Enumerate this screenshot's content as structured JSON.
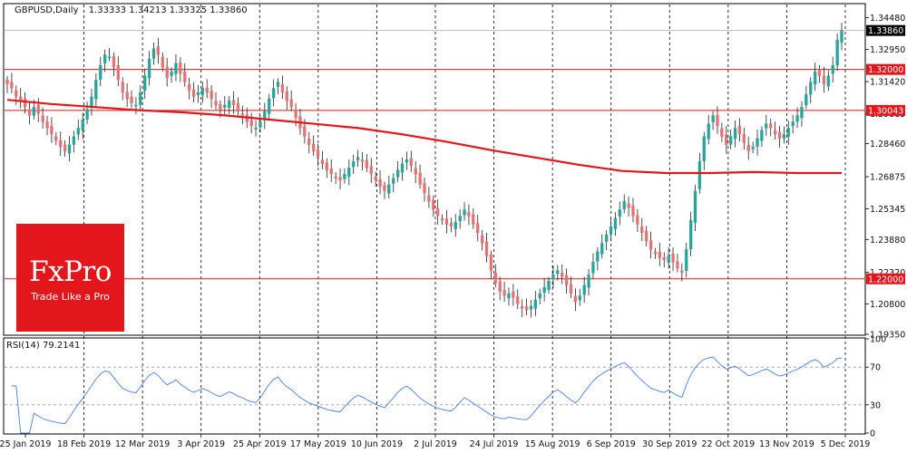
{
  "header": {
    "symbol_label": "GBPUSD,Daily",
    "ohlc": "1.33333 1.34213 1.33325 1.33860"
  },
  "logo": {
    "brand": "FxPro",
    "tagline": "Trade Like a Pro"
  },
  "colors": {
    "up": "#26a69a",
    "down": "#e57373",
    "ma": "#e3161b",
    "level": "#e3161b",
    "rsi": "#4a7fd6",
    "price_tag": "#e3161b",
    "brand": "#e3161b"
  },
  "chart_data": [
    {
      "type": "candlestick",
      "title": "GBPUSD,Daily",
      "ylim": [
        1.1935,
        1.351
      ],
      "price_ticks": [
        "1.34480",
        "1.32950",
        "1.31420",
        "1.29885",
        "1.28460",
        "1.26875",
        "1.25345",
        "1.23880",
        "1.22320",
        "1.20800",
        "1.19350"
      ],
      "date_labels": [
        "25 Jan 2019",
        "18 Feb 2019",
        "12 Mar 2019",
        "3 Apr 2019",
        "25 Apr 2019",
        "17 May 2019",
        "10 Jun 2019",
        "2 Jul 2019",
        "24 Jul 2019",
        "15 Aug 2019",
        "6 Sep 2019",
        "30 Sep 2019",
        "22 Oct 2019",
        "13 Nov 2019",
        "5 Dec 2019"
      ],
      "horizontal_levels": [
        {
          "value": 1.32,
          "label": "1.32000"
        },
        {
          "value": 1.30043,
          "label": "1.30043"
        },
        {
          "value": 1.22,
          "label": "1.22000"
        }
      ],
      "current_price": {
        "value": 1.3386,
        "label": "1.33860"
      },
      "closes": [
        1.313,
        1.311,
        1.307,
        1.305,
        1.302,
        1.298,
        1.302,
        1.299,
        1.295,
        1.292,
        1.289,
        1.286,
        1.283,
        1.281,
        1.284,
        1.288,
        1.292,
        1.296,
        1.301,
        1.307,
        1.315,
        1.322,
        1.327,
        1.326,
        1.321,
        1.315,
        1.309,
        1.306,
        1.304,
        1.303,
        1.309,
        1.317,
        1.325,
        1.33,
        1.327,
        1.321,
        1.316,
        1.319,
        1.323,
        1.318,
        1.314,
        1.31,
        1.307,
        1.309,
        1.311,
        1.309,
        1.306,
        1.303,
        1.301,
        1.303,
        1.305,
        1.303,
        1.3,
        1.298,
        1.295,
        1.293,
        1.292,
        1.295,
        1.3,
        1.306,
        1.311,
        1.314,
        1.309,
        1.305,
        1.302,
        1.297,
        1.292,
        1.288,
        1.284,
        1.281,
        1.278,
        1.275,
        1.272,
        1.27,
        1.268,
        1.267,
        1.27,
        1.273,
        1.276,
        1.278,
        1.276,
        1.273,
        1.27,
        1.267,
        1.264,
        1.262,
        1.265,
        1.268,
        1.272,
        1.275,
        1.277,
        1.274,
        1.27,
        1.265,
        1.261,
        1.257,
        1.253,
        1.25,
        1.248,
        1.246,
        1.245,
        1.247,
        1.25,
        1.253,
        1.25,
        1.246,
        1.242,
        1.237,
        1.231,
        1.224,
        1.218,
        1.214,
        1.212,
        1.213,
        1.211,
        1.208,
        1.206,
        1.205,
        1.207,
        1.21,
        1.213,
        1.216,
        1.219,
        1.222,
        1.224,
        1.221,
        1.217,
        1.213,
        1.209,
        1.212,
        1.217,
        1.222,
        1.228,
        1.233,
        1.237,
        1.241,
        1.245,
        1.249,
        1.253,
        1.257,
        1.254,
        1.25,
        1.246,
        1.242,
        1.238,
        1.234,
        1.232,
        1.23,
        1.229,
        1.231,
        1.228,
        1.225,
        1.223,
        1.234,
        1.248,
        1.262,
        1.276,
        1.288,
        1.294,
        1.298,
        1.293,
        1.288,
        1.284,
        1.288,
        1.292,
        1.289,
        1.285,
        1.281,
        1.283,
        1.287,
        1.291,
        1.294,
        1.292,
        1.289,
        1.287,
        1.289,
        1.292,
        1.295,
        1.298,
        1.302,
        1.308,
        1.314,
        1.319,
        1.317,
        1.313,
        1.317,
        1.322,
        1.334,
        1.3386
      ],
      "ma200": [
        1.3055,
        1.3035,
        1.302,
        1.3005,
        1.2995,
        1.298,
        1.296,
        1.294,
        1.292,
        1.289,
        1.2855,
        1.2815,
        1.278,
        1.2745,
        1.2715,
        1.2705,
        1.2705,
        1.271,
        1.2705,
        1.2705
      ],
      "rsi": {
        "label": "RSI(14) 79.2141",
        "period": 14,
        "last": 79.2141,
        "ylim": [
          0,
          100
        ],
        "ticks": [
          "100",
          "70",
          "30",
          "0"
        ],
        "levels": [
          70,
          30
        ]
      }
    }
  ]
}
